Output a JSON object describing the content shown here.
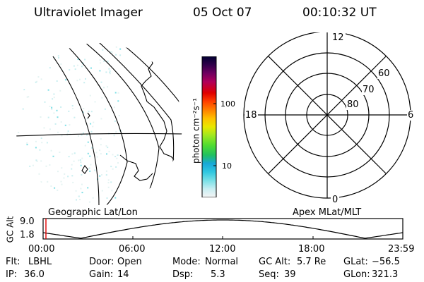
{
  "header": {
    "title": "Ultraviolet Imager",
    "date": "05 Oct 07",
    "time": "00:10:32 UT"
  },
  "colorbar": {
    "label": "photon cm⁻²s⁻¹",
    "tick_100": "100",
    "tick_10": "10",
    "scale": "log",
    "colors": [
      "#f5f5f5",
      "#c8eef2",
      "#78e0e6",
      "#30c8e0",
      "#18a8d8",
      "#20c060",
      "#50dc30",
      "#a0e820",
      "#e8e800",
      "#ffc000",
      "#ff8000",
      "#ff4000",
      "#e00000",
      "#b0005a",
      "#700060",
      "#30004a",
      "#000030"
    ]
  },
  "maps": {
    "left_caption": "Geographic Lat/Lon",
    "right_caption": "Apex MLat/MLT"
  },
  "polar": {
    "mlt_labels": {
      "top": "12",
      "left": "18",
      "right": "6",
      "bottom": "0"
    },
    "lat_labels": [
      "60",
      "70",
      "80"
    ]
  },
  "altitude_plot": {
    "ylabel": "GC Alt",
    "ymax": "9.0",
    "ymin": "1.8",
    "xticks": [
      "00:00",
      "06:00",
      "12:00",
      "18:00",
      "23:59"
    ],
    "current_time_marker": "00:10",
    "line_color": "#000000",
    "marker_color": "#e00000"
  },
  "status": {
    "flt_label": "Flt:",
    "flt_value": "LBHL",
    "ip_label": "IP:",
    "ip_value": "36.0",
    "door_label": "Door:",
    "door_value": "Open",
    "gain_label": "Gain:",
    "gain_value": "14",
    "mode_label": "Mode:",
    "mode_value": "Normal",
    "dsp_label": "Dsp:",
    "dsp_value": "5.3",
    "gcalt_label": "GC Alt:",
    "gcalt_value": "5.7 Re",
    "seq_label": "Seq:",
    "seq_value": "39",
    "glat_label": "GLat:",
    "glat_value": "−56.5",
    "glon_label": "GLon:",
    "glon_value": "321.3"
  }
}
